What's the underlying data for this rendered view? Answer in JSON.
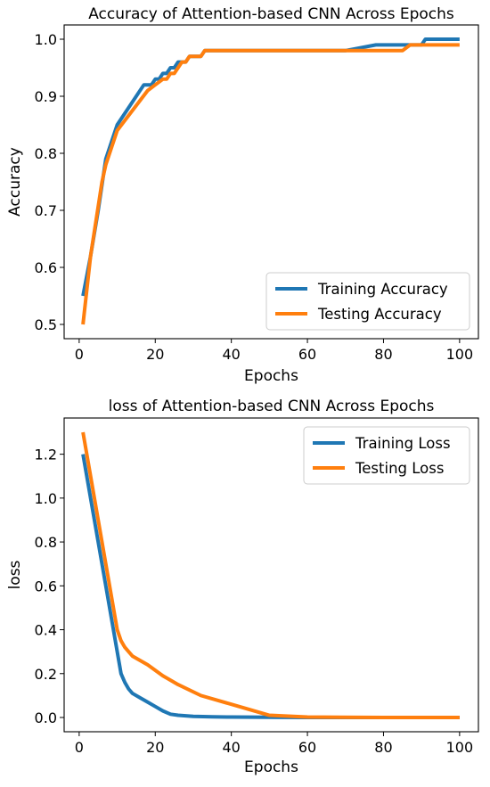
{
  "chart_data": [
    {
      "type": "line",
      "title": "Accuracy of Attention-based CNN Across Epochs",
      "xlabel": "Epochs",
      "ylabel": "Accuracy",
      "xlim": [
        -3.95,
        104.95
      ],
      "ylim": [
        0.475,
        1.025
      ],
      "xticks": [
        0,
        20,
        40,
        60,
        80,
        100
      ],
      "yticks": [
        0.5,
        0.6,
        0.7,
        0.8,
        0.9,
        1.0
      ],
      "xtick_labels": [
        "0",
        "20",
        "40",
        "60",
        "80",
        "100"
      ],
      "ytick_labels": [
        "0.5",
        "0.6",
        "0.7",
        "0.8",
        "0.9",
        "1.0"
      ],
      "grid": false,
      "legend_position": "lower-right",
      "series": [
        {
          "name": "Training Accuracy",
          "color": "#1f77b4",
          "x": [
            1,
            3,
            5,
            7,
            10,
            17,
            19,
            20,
            21,
            22,
            23,
            24,
            25,
            26,
            28,
            29,
            32,
            33,
            70,
            78,
            80,
            90,
            91,
            100
          ],
          "y": [
            0.55,
            0.62,
            0.7,
            0.79,
            0.85,
            0.92,
            0.92,
            0.93,
            0.93,
            0.94,
            0.94,
            0.95,
            0.95,
            0.96,
            0.96,
            0.97,
            0.97,
            0.98,
            0.98,
            0.99,
            0.99,
            0.99,
            1.0,
            1.0
          ]
        },
        {
          "name": "Testing Accuracy",
          "color": "#ff7f0e",
          "x": [
            1,
            3,
            6,
            7,
            10,
            18,
            20,
            22,
            23,
            24,
            25,
            26,
            27,
            28,
            29,
            32,
            33,
            85,
            87,
            100
          ],
          "y": [
            0.5,
            0.62,
            0.75,
            0.78,
            0.84,
            0.91,
            0.92,
            0.93,
            0.93,
            0.94,
            0.94,
            0.95,
            0.96,
            0.96,
            0.97,
            0.97,
            0.98,
            0.98,
            0.99,
            0.99
          ]
        }
      ]
    },
    {
      "type": "line",
      "title": "loss of Attention-based CNN Across Epochs",
      "xlabel": "Epochs",
      "ylabel": "loss",
      "xlim": [
        -3.95,
        104.95
      ],
      "ylim": [
        -0.065,
        1.365
      ],
      "xticks": [
        0,
        20,
        40,
        60,
        80,
        100
      ],
      "yticks": [
        0.0,
        0.2,
        0.4,
        0.6,
        0.8,
        1.0,
        1.2
      ],
      "xtick_labels": [
        "0",
        "20",
        "40",
        "60",
        "80",
        "100"
      ],
      "ytick_labels": [
        "0.0",
        "0.2",
        "0.4",
        "0.6",
        "0.8",
        "1.0",
        "1.2"
      ],
      "grid": false,
      "legend_position": "upper-right",
      "series": [
        {
          "name": "Training Loss",
          "color": "#1f77b4",
          "x": [
            1,
            3,
            5,
            7,
            9,
            10,
            11,
            12,
            13,
            14,
            16,
            18,
            20,
            22,
            24,
            26,
            30,
            35,
            40,
            50,
            60,
            80,
            100
          ],
          "y": [
            1.2,
            1.0,
            0.8,
            0.6,
            0.4,
            0.3,
            0.2,
            0.16,
            0.13,
            0.11,
            0.09,
            0.07,
            0.05,
            0.03,
            0.015,
            0.01,
            0.005,
            0.003,
            0.002,
            0.001,
            0.0,
            0.0,
            0.0
          ]
        },
        {
          "name": "Testing Loss",
          "color": "#ff7f0e",
          "x": [
            1,
            3,
            5,
            7,
            9,
            10,
            11,
            12,
            13,
            14,
            18,
            22,
            26,
            32,
            40,
            50,
            60,
            80,
            100
          ],
          "y": [
            1.3,
            1.1,
            0.9,
            0.7,
            0.5,
            0.4,
            0.35,
            0.32,
            0.3,
            0.28,
            0.24,
            0.19,
            0.15,
            0.1,
            0.06,
            0.01,
            0.002,
            0.0,
            0.0
          ]
        }
      ]
    }
  ]
}
